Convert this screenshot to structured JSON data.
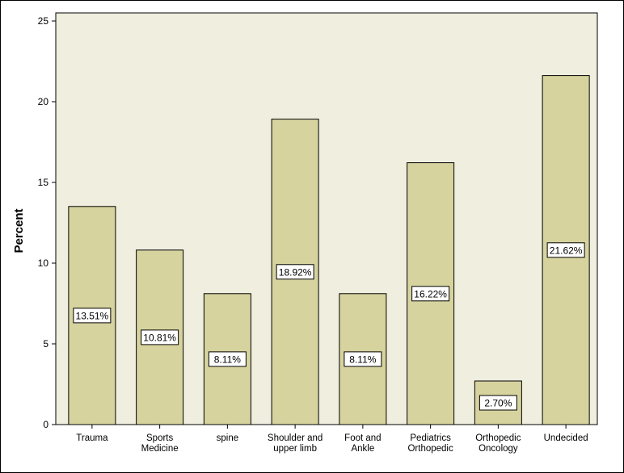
{
  "chart_data": {
    "type": "bar",
    "title": "",
    "xlabel": "",
    "ylabel": "Percent",
    "ylim": [
      0,
      25
    ],
    "yticks": [
      0,
      5,
      10,
      15,
      20,
      25
    ],
    "grid": false,
    "legend": "none",
    "categories": [
      [
        "Trauma"
      ],
      [
        "Sports",
        "Medicine"
      ],
      [
        "spine"
      ],
      [
        "Shoulder and",
        "upper limb"
      ],
      [
        "Foot and",
        "Ankle"
      ],
      [
        "Pediatrics",
        "Orthopedic"
      ],
      [
        "Orthopedic",
        "Oncology"
      ],
      [
        "Undecided"
      ]
    ],
    "values": [
      13.51,
      10.81,
      8.11,
      18.92,
      8.11,
      16.22,
      2.7,
      21.62
    ],
    "data_labels": [
      "13.51%",
      "10.81%",
      "8.11%",
      "18.92%",
      "8.11%",
      "16.22%",
      "2.70%",
      "21.62%"
    ],
    "colors": {
      "plot_background": "#efeedf",
      "bar_fill": "#d7d39f",
      "bar_stroke": "#000000",
      "label_box": "#ffffff"
    }
  }
}
